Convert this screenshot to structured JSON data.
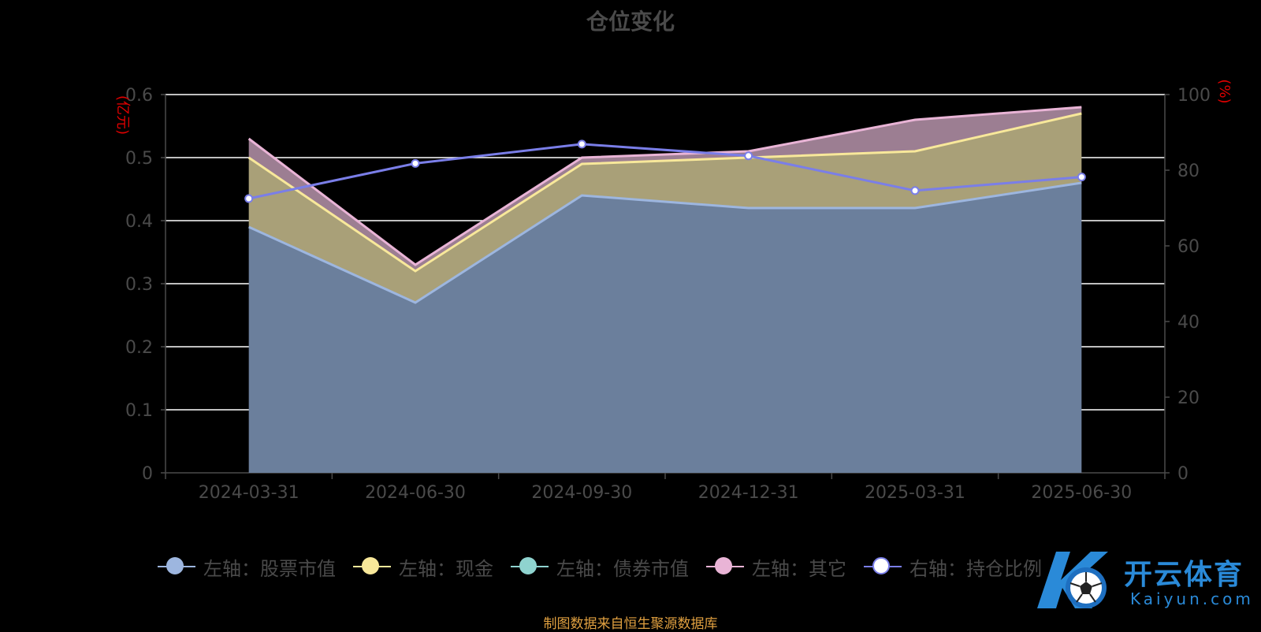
{
  "chart_data": {
    "type": "area",
    "title": "仓位变化",
    "categories": [
      "2024-03-31",
      "2024-06-30",
      "2024-09-30",
      "2024-12-31",
      "2025-03-31",
      "2025-06-30"
    ],
    "left_axis": {
      "unit": "(亿元)",
      "ylim": [
        0,
        0.6
      ],
      "ticks": [
        "0",
        "0.1",
        "0.2",
        "0.3",
        "0.4",
        "0.5",
        "0.6"
      ]
    },
    "right_axis": {
      "unit": "(%)",
      "ylim": [
        0,
        100
      ],
      "ticks": [
        "0",
        "20",
        "40",
        "60",
        "80",
        "100"
      ]
    },
    "series": [
      {
        "name": "左轴：股票市值",
        "axis": "left",
        "stacked": true,
        "values": [
          0.39,
          0.27,
          0.44,
          0.42,
          0.42,
          0.46
        ],
        "color": "#9db6df",
        "fill": "#6b7f9c"
      },
      {
        "name": "左轴：现金",
        "axis": "left",
        "stacked": true,
        "values": [
          0.11,
          0.05,
          0.05,
          0.08,
          0.09,
          0.11
        ],
        "color": "#f8e89a",
        "fill": "#a9a078"
      },
      {
        "name": "左轴：债券市值",
        "axis": "left",
        "stacked": true,
        "values": [
          0,
          0,
          0,
          0,
          0,
          0
        ],
        "color": "#8fd3cf",
        "fill": "#8fd3cf"
      },
      {
        "name": "左轴：其它",
        "axis": "left",
        "stacked": true,
        "values": [
          0.03,
          0.01,
          0.01,
          0.01,
          0.05,
          0.01
        ],
        "color": "#e9b4d6",
        "fill": "#9c7e92"
      },
      {
        "name": "右轴：持仓比例",
        "axis": "right",
        "type": "line",
        "values": [
          72.5,
          81.8,
          86.9,
          83.8,
          74.6,
          78.2
        ],
        "color": "#7a7ee8"
      }
    ],
    "grid": true,
    "legend_position": "bottom"
  },
  "footer": "制图数据来自恒生聚源数据库",
  "watermark": {
    "name": "开云体育",
    "url": "Kaiyun.com"
  },
  "colors": {
    "background": "#000000",
    "grid": "#ffffff",
    "axis_unit": "#e00000",
    "footer": "#e0a040"
  }
}
